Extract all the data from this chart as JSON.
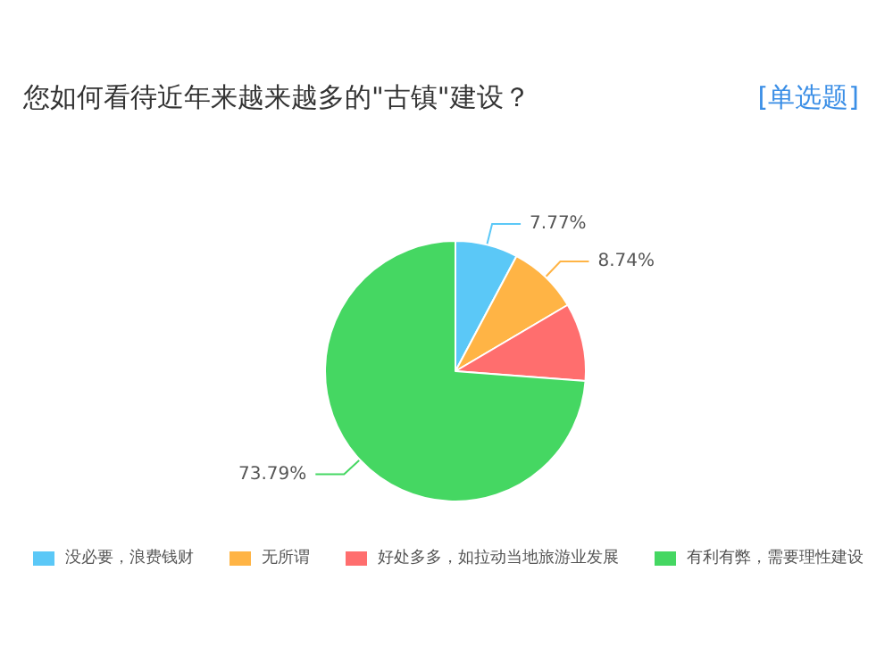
{
  "chart_data": {
    "type": "pie",
    "title": "您如何看待近年来越来越多的\"古镇\"建设？",
    "subtitle": "[单选题]",
    "categories": [
      "没必要，浪费钱财",
      "无所谓",
      "好处多多，如拉动当地旅游业发展",
      "有利有弊，需要理性建设"
    ],
    "values": [
      7.77,
      8.74,
      9.7,
      73.79
    ],
    "value_labels": [
      "7.77%",
      "8.74%",
      null,
      "73.79%"
    ],
    "colors": [
      "#5bc8f7",
      "#ffb445",
      "#ff6e6e",
      "#45d762"
    ],
    "legend": "bottom"
  }
}
